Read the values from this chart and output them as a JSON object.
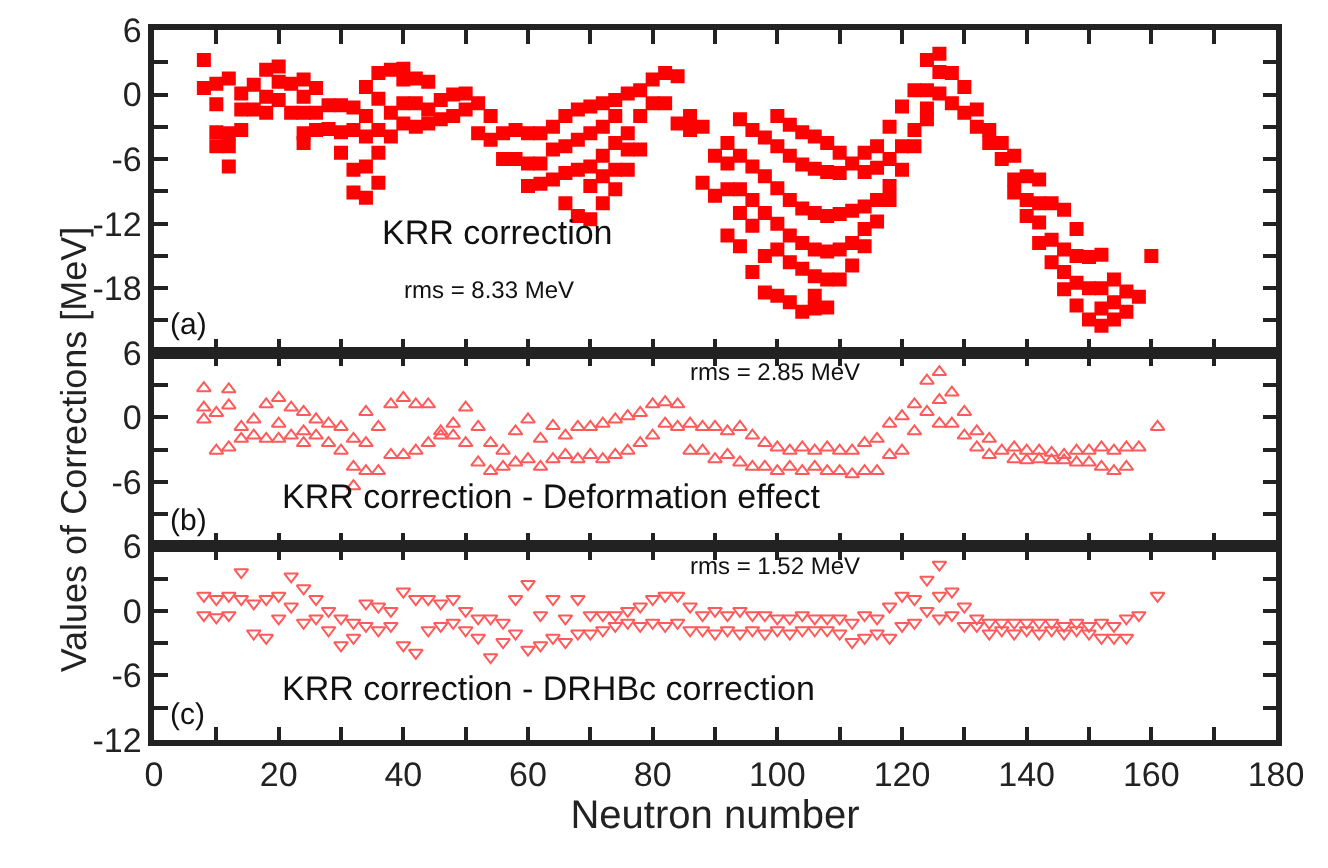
{
  "chart_data": [
    {
      "type": "scatter",
      "marker": "square",
      "tick_labels": "y",
      "xlim": [
        0,
        180
      ],
      "xticks": [
        0,
        {
          "value": 10,
          "label": null
        },
        20,
        {
          "value": 30,
          "label": null
        },
        40,
        {
          "value": 50,
          "label": null
        },
        60,
        {
          "value": 70,
          "label": null
        },
        80,
        {
          "value": 90,
          "label": null
        },
        100,
        {
          "value": 110,
          "label": null
        },
        120,
        {
          "value": 130,
          "label": null
        },
        140,
        {
          "value": 150,
          "label": null
        },
        160,
        {
          "value": 170,
          "label": null
        },
        180
      ],
      "ylim": [
        -24,
        6
      ],
      "yticks": [
        6,
        {
          "value": 3,
          "label": null
        },
        0,
        {
          "value": -3,
          "label": null
        },
        -6,
        {
          "value": -9,
          "label": null
        },
        -12,
        {
          "value": -15,
          "label": null
        },
        -18,
        {
          "value": -21,
          "label": null
        },
        {
          "value": -24,
          "label": null
        }
      ],
      "annotations": [
        "(a)",
        "KRR correction",
        "rms = 8.33 MeV"
      ],
      "series": [
        {
          "color": "#ff0000",
          "x": [
            8,
            8,
            10,
            10,
            10,
            10,
            12,
            12,
            12,
            12,
            14,
            14,
            14,
            16,
            16,
            18,
            18,
            18,
            20,
            20,
            20,
            22,
            22,
            24,
            24,
            24,
            24,
            24,
            26,
            26,
            26,
            28,
            28,
            30,
            30,
            30,
            32,
            32,
            32,
            32,
            34,
            34,
            34,
            34,
            34,
            36,
            36,
            36,
            36,
            36,
            38,
            38,
            38,
            40,
            40,
            40,
            40,
            42,
            42,
            42,
            44,
            44,
            44,
            46,
            46,
            48,
            48,
            50,
            50,
            52,
            52,
            54,
            54,
            56,
            56,
            58,
            58,
            60,
            60,
            60,
            62,
            62,
            62,
            64,
            64,
            64,
            66,
            66,
            66,
            66,
            68,
            68,
            68,
            68,
            70,
            70,
            70,
            70,
            70,
            72,
            72,
            72,
            72,
            72,
            74,
            74,
            74,
            74,
            74,
            76,
            76,
            76,
            76,
            78,
            78,
            78,
            80,
            80,
            82,
            82,
            84,
            84,
            86,
            86,
            88,
            88,
            90,
            90,
            92,
            92,
            92,
            92,
            94,
            94,
            94,
            94,
            94,
            96,
            96,
            96,
            96,
            96,
            98,
            98,
            98,
            98,
            98,
            100,
            100,
            100,
            100,
            100,
            100,
            102,
            102,
            102,
            102,
            102,
            102,
            104,
            104,
            104,
            104,
            104,
            104,
            106,
            106,
            106,
            106,
            106,
            106,
            106,
            108,
            108,
            108,
            108,
            108,
            108,
            110,
            110,
            110,
            110,
            110,
            112,
            112,
            112,
            112,
            114,
            114,
            114,
            114,
            114,
            116,
            116,
            116,
            116,
            118,
            118,
            118,
            118,
            120,
            120,
            120,
            122,
            122,
            122,
            124,
            124,
            124,
            124,
            126,
            126,
            126,
            128,
            128,
            130,
            130,
            132,
            132,
            134,
            134,
            136,
            136,
            138,
            138,
            138,
            140,
            140,
            140,
            142,
            142,
            142,
            142,
            144,
            144,
            144,
            146,
            146,
            146,
            146,
            148,
            148,
            148,
            148,
            150,
            150,
            150,
            152,
            152,
            152,
            152,
            154,
            154,
            154,
            156,
            156,
            158,
            160
          ],
          "values": [
            3.2,
            0.6,
            1.0,
            -0.9,
            -3.5,
            -4.8,
            1.5,
            -3.6,
            -4.8,
            -6.7,
            0.1,
            -1.4,
            -3.3,
            0.9,
            -1.4,
            2.3,
            -0.2,
            -1.7,
            2.6,
            1.2,
            -0.5,
            1.0,
            -1.7,
            1.4,
            -0.2,
            -1.7,
            -3.6,
            -4.5,
            0.6,
            -1.7,
            -3.3,
            -1.0,
            -3.2,
            -1.0,
            -3.5,
            -5.4,
            -1.2,
            -3.3,
            -7.0,
            -9.1,
            0.7,
            -2.0,
            -3.9,
            -6.7,
            -9.6,
            2.0,
            -0.4,
            -3.3,
            -5.4,
            -8.2,
            2.3,
            -1.7,
            -3.9,
            2.4,
            1.4,
            -0.8,
            -2.7,
            1.5,
            -0.8,
            -3.0,
            1.2,
            -1.4,
            -2.7,
            -0.5,
            -2.3,
            0,
            -2.0,
            0.1,
            -1.4,
            -0.8,
            -3.6,
            -2.0,
            -4.2,
            -3.6,
            -6.0,
            -3.3,
            -6.0,
            -3.6,
            -6.4,
            -8.5,
            -3.6,
            -6.4,
            -8.3,
            -3.0,
            -5.1,
            -7.9,
            -2.0,
            -4.8,
            -7.3,
            -10.1,
            -1.4,
            -4.2,
            -7.0,
            -11.3,
            -1.1,
            -3.6,
            -6.7,
            -8.5,
            -11.6,
            -0.8,
            -3.0,
            -5.7,
            -7.6,
            -10.1,
            -0.5,
            -2.0,
            -4.5,
            -7.0,
            -8.8,
            0.1,
            -3.6,
            -5.1,
            -7.0,
            0.4,
            -2.0,
            -5.1,
            1.4,
            -0.8,
            2.0,
            -0.8,
            1.7,
            -2.7,
            -2.0,
            -3.3,
            -3.0,
            -8.2,
            -5.7,
            -9.4,
            -4.5,
            -6.4,
            -8.8,
            -13.1,
            -2.3,
            -5.7,
            -8.8,
            -11.0,
            -14.1,
            -3.3,
            -6.7,
            -9.8,
            -12.2,
            -16.5,
            -4.0,
            -7.6,
            -11.0,
            -15.0,
            -18.4,
            -2.0,
            -4.8,
            -8.7,
            -12.0,
            -14.4,
            -18.7,
            -2.8,
            -5.7,
            -9.8,
            -13.1,
            -15.6,
            -19.3,
            -3.5,
            -6.5,
            -10.6,
            -13.8,
            -16.2,
            -20.2,
            -3.9,
            -6.9,
            -11.0,
            -14.4,
            -16.9,
            -18.7,
            -19.9,
            -4.5,
            -7.2,
            -11.3,
            -14.6,
            -17.2,
            -19.8,
            -5.4,
            -7.3,
            -11.1,
            -14.4,
            -17.2,
            -6.4,
            -10.8,
            -13.8,
            -15.9,
            -5.4,
            -7.2,
            -10.4,
            -12.5,
            -14.1,
            -4.8,
            -6.8,
            -9.8,
            -11.8,
            -3.0,
            -6.0,
            -8.5,
            -9.8,
            -1.1,
            -4.8,
            -7.0,
            0.4,
            -3.3,
            -4.8,
            3.2,
            0.4,
            -1.3,
            -2.3,
            3.8,
            2.1,
            0.1,
            2.0,
            -0.8,
            0.7,
            -1.7,
            -1.4,
            -3.0,
            -3.3,
            -4.5,
            -4.5,
            -6.0,
            -5.7,
            -7.9,
            -9.1,
            -7.6,
            -9.8,
            -11.3,
            -7.9,
            -10.1,
            -11.9,
            -13.8,
            -10.1,
            -13.5,
            -15.6,
            -10.7,
            -14.4,
            -16.5,
            -18.1,
            -12.5,
            -15.0,
            -17.5,
            -19.6,
            -15.1,
            -18.0,
            -20.9,
            -14.9,
            -18.0,
            -19.9,
            -21.5,
            -17.2,
            -19.3,
            -20.9,
            -18.3,
            -20.2,
            -18.8,
            -15.0
          ]
        }
      ]
    },
    {
      "type": "scatter",
      "marker": "triangle",
      "tick_labels": "y",
      "xlim": [
        0,
        180
      ],
      "xticks": [
        0,
        {
          "value": 10,
          "label": null
        },
        20,
        {
          "value": 30,
          "label": null
        },
        40,
        {
          "value": 50,
          "label": null
        },
        60,
        {
          "value": 70,
          "label": null
        },
        80,
        {
          "value": 90,
          "label": null
        },
        100,
        {
          "value": 110,
          "label": null
        },
        120,
        {
          "value": 130,
          "label": null
        },
        140,
        {
          "value": 150,
          "label": null
        },
        160,
        {
          "value": 170,
          "label": null
        },
        180
      ],
      "ylim": [
        -12,
        6
      ],
      "yticks": [
        6,
        {
          "value": 3,
          "label": null
        },
        0,
        {
          "value": -3,
          "label": null
        },
        -6,
        {
          "value": -9,
          "label": null
        },
        {
          "value": -12,
          "label": null
        }
      ],
      "ylabel": "Values of Corrections [MeV]",
      "annotations": [
        "(b)",
        "KRR correction - Deformation effect",
        "rms = 2.85 MeV"
      ],
      "series": [
        {
          "color": "#ff5a5a",
          "x": [
            8,
            8,
            8,
            10,
            10,
            12,
            12,
            12,
            14,
            14,
            16,
            16,
            18,
            18,
            20,
            20,
            20,
            22,
            22,
            24,
            24,
            24,
            26,
            26,
            28,
            28,
            30,
            30,
            32,
            32,
            32,
            34,
            34,
            34,
            36,
            36,
            38,
            38,
            40,
            40,
            42,
            42,
            44,
            44,
            46,
            46,
            48,
            48,
            50,
            50,
            52,
            52,
            54,
            54,
            56,
            56,
            58,
            58,
            60,
            60,
            62,
            62,
            64,
            64,
            66,
            66,
            68,
            68,
            70,
            70,
            72,
            72,
            74,
            74,
            76,
            76,
            78,
            78,
            80,
            80,
            82,
            82,
            84,
            84,
            86,
            86,
            88,
            88,
            90,
            90,
            92,
            92,
            94,
            94,
            96,
            96,
            98,
            98,
            100,
            100,
            102,
            102,
            104,
            104,
            106,
            106,
            108,
            108,
            110,
            110,
            112,
            112,
            114,
            114,
            116,
            116,
            118,
            118,
            120,
            120,
            122,
            122,
            124,
            124,
            126,
            126,
            126,
            128,
            128,
            130,
            130,
            132,
            132,
            134,
            134,
            136,
            138,
            138,
            140,
            140,
            142,
            142,
            144,
            144,
            146,
            146,
            148,
            148,
            150,
            150,
            152,
            152,
            154,
            154,
            156,
            156,
            158,
            161
          ],
          "values": [
            2.7,
            0.9,
            -0.2,
            0.4,
            -3.1,
            2.6,
            1.1,
            -2.8,
            -0.9,
            -2.0,
            -0.2,
            -1.7,
            1.2,
            -2.0,
            1.8,
            -0.6,
            -2.0,
            0.9,
            -1.7,
            0.5,
            -1.3,
            -2.4,
            -0.2,
            -1.7,
            -0.6,
            -2.4,
            -0.9,
            -3.1,
            -2.0,
            -4.6,
            -6.4,
            0.5,
            -2.4,
            -5.0,
            -0.9,
            -5.0,
            1.2,
            -3.5,
            1.8,
            -3.5,
            1.2,
            -3.1,
            1.2,
            -2.4,
            -1.3,
            -1.7,
            -0.6,
            -1.7,
            0.9,
            -2.4,
            -0.9,
            -4.2,
            -2.4,
            -5.0,
            -3.1,
            -4.6,
            -1.3,
            -4.2,
            -0.2,
            -3.9,
            -2.0,
            -4.6,
            -0.8,
            -3.9,
            -1.7,
            -3.5,
            -0.9,
            -3.9,
            -0.9,
            -3.5,
            -0.6,
            -3.9,
            -0.2,
            -3.5,
            0.1,
            -3.1,
            0.4,
            -2.4,
            1.2,
            -1.7,
            1.4,
            -0.6,
            1.2,
            -0.9,
            -0.6,
            -3.1,
            -0.9,
            -3.1,
            -0.9,
            -3.9,
            -1.3,
            -3.5,
            -0.9,
            -4.2,
            -1.7,
            -4.6,
            -2.4,
            -4.6,
            -2.8,
            -5.0,
            -3.1,
            -4.6,
            -2.8,
            -5.0,
            -3.1,
            -4.6,
            -2.8,
            -5.0,
            -3.1,
            -5.0,
            -3.1,
            -5.3,
            -2.4,
            -5.0,
            -2.0,
            -5.0,
            -0.6,
            -3.5,
            0.1,
            -3.1,
            1.2,
            -1.3,
            3.4,
            0.5,
            4.2,
            1.6,
            -0.6,
            2.3,
            -0.6,
            0.5,
            -1.7,
            -1.3,
            -2.8,
            -2.0,
            -3.5,
            -3.1,
            -2.8,
            -3.9,
            -3.1,
            -4.0,
            -3.1,
            -3.9,
            -3.3,
            -4.0,
            -3.5,
            -4.0,
            -3.1,
            -4.2,
            -3.1,
            -4.2,
            -2.8,
            -4.6,
            -3.1,
            -5.0,
            -2.8,
            -4.6,
            -2.8,
            -0.9
          ]
        }
      ]
    },
    {
      "type": "scatter",
      "marker": "triangle-down",
      "xlim": [
        0,
        180
      ],
      "xticks": [
        0,
        {
          "value": 10,
          "label": null
        },
        20,
        {
          "value": 30,
          "label": null
        },
        40,
        {
          "value": 50,
          "label": null
        },
        60,
        {
          "value": 70,
          "label": null
        },
        80,
        {
          "value": 90,
          "label": null
        },
        100,
        {
          "value": 110,
          "label": null
        },
        120,
        {
          "value": 130,
          "label": null
        },
        140,
        {
          "value": 150,
          "label": null
        },
        160,
        {
          "value": 170,
          "label": null
        },
        180
      ],
      "ylim": [
        -12,
        6
      ],
      "yticks": [
        6,
        {
          "value": 3,
          "label": null
        },
        0,
        {
          "value": -3,
          "label": null
        },
        -6,
        {
          "value": -9,
          "label": null
        },
        -12
      ],
      "xlabel": "Neutron number",
      "annotations": [
        "(c)",
        "KRR correction - DRHBc correction",
        "rms = 1.52 MeV"
      ],
      "series": [
        {
          "color": "#ff5a5a",
          "x": [
            8,
            8,
            10,
            10,
            12,
            12,
            14,
            14,
            16,
            16,
            18,
            18,
            20,
            20,
            22,
            22,
            24,
            24,
            26,
            26,
            28,
            28,
            30,
            30,
            32,
            32,
            34,
            34,
            36,
            36,
            38,
            38,
            40,
            40,
            42,
            42,
            44,
            44,
            46,
            46,
            48,
            48,
            50,
            50,
            52,
            52,
            54,
            54,
            56,
            56,
            58,
            58,
            60,
            60,
            62,
            62,
            64,
            64,
            66,
            66,
            68,
            68,
            70,
            70,
            72,
            72,
            74,
            74,
            76,
            76,
            78,
            78,
            80,
            80,
            82,
            82,
            84,
            84,
            86,
            86,
            88,
            88,
            90,
            90,
            92,
            92,
            94,
            94,
            96,
            96,
            98,
            98,
            100,
            100,
            102,
            102,
            104,
            104,
            106,
            106,
            108,
            108,
            110,
            110,
            112,
            112,
            114,
            114,
            116,
            116,
            118,
            118,
            120,
            120,
            122,
            122,
            124,
            124,
            126,
            126,
            126,
            128,
            128,
            130,
            130,
            132,
            132,
            134,
            134,
            136,
            136,
            138,
            138,
            140,
            140,
            142,
            142,
            144,
            144,
            146,
            146,
            148,
            148,
            150,
            150,
            152,
            152,
            154,
            154,
            156,
            156,
            158,
            161
          ],
          "values": [
            1.4,
            -0.4,
            1.1,
            -0.6,
            1.4,
            -0.4,
            3.6,
            1.1,
            0.7,
            -2.1,
            1.1,
            -2.5,
            1.4,
            -0.7,
            3.2,
            0.4,
            2.1,
            -1.1,
            1.1,
            -0.7,
            0,
            -1.8,
            -0.7,
            -3.2,
            -1.1,
            -2.5,
            0.7,
            -1.4,
            0.4,
            -1.8,
            0,
            -1.4,
            1.8,
            -3.2,
            1.1,
            -3.9,
            1.1,
            -1.8,
            0.7,
            -1.4,
            1.1,
            -1.1,
            0,
            -1.8,
            -0.7,
            -2.5,
            -0.7,
            -4.3,
            -1.1,
            -2.9,
            1.1,
            -2.1,
            2.5,
            -3.6,
            -0.4,
            -3.2,
            1.1,
            -2.5,
            -0.7,
            -2.9,
            1.1,
            -2.1,
            -0.4,
            -2.1,
            -0.4,
            -1.8,
            -0.4,
            -1.4,
            0,
            -1.1,
            0.4,
            -1.4,
            1.1,
            -1.1,
            1.4,
            -1.4,
            1.4,
            -1.1,
            0.4,
            -1.8,
            -0.4,
            -1.8,
            0,
            -2.1,
            -0.4,
            -1.8,
            0,
            -2.1,
            -0.4,
            -1.8,
            -0.4,
            -2.1,
            -0.7,
            -1.8,
            -0.7,
            -2.1,
            -0.4,
            -1.8,
            -0.7,
            -1.8,
            -0.7,
            -1.8,
            -0.7,
            -2.1,
            -1.1,
            -2.9,
            -0.4,
            -2.5,
            -0.7,
            -2.1,
            0.4,
            -2.5,
            1.4,
            -1.4,
            1.1,
            -1.1,
            2.9,
            0,
            4.3,
            1.4,
            -0.7,
            1.8,
            -0.4,
            0.4,
            -1.4,
            -0.7,
            -1.4,
            -1.1,
            -2.1,
            -1.1,
            -1.8,
            -1.1,
            -2.1,
            -1.1,
            -1.8,
            -1.1,
            -2.1,
            -1.1,
            -1.8,
            -1.4,
            -2.1,
            -1.1,
            -1.8,
            -1.4,
            -2.1,
            -1.1,
            -2.5,
            -1.4,
            -2.5,
            -0.7,
            -2.5,
            -0.4,
            1.4
          ]
        }
      ]
    }
  ]
}
